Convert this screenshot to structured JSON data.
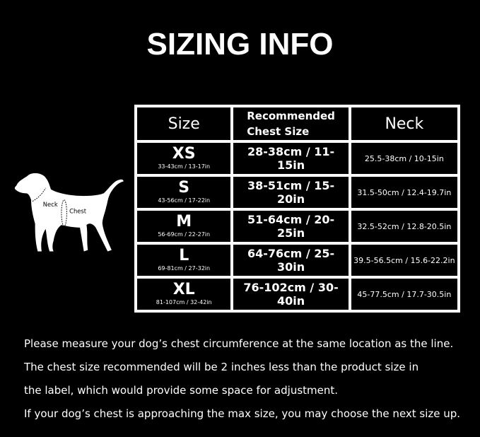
{
  "title": "SIZING INFO",
  "table": {
    "headers": {
      "size": "Size",
      "chest_line1": "Recommended",
      "chest_line2": "Chest Size",
      "neck": "Neck"
    },
    "rows": [
      {
        "size": "XS",
        "range": "33-43cm / 13-17in",
        "chest": "28-38cm / 11-15in",
        "neck": "25.5-38cm / 10-15in"
      },
      {
        "size": "S",
        "range": "43-56cm / 17-22in",
        "chest": "38-51cm / 15-20in",
        "neck": "31.5-50cm / 12.4-19.7in"
      },
      {
        "size": "M",
        "range": "56-69cm / 22-27in",
        "chest": "51-64cm / 20-25in",
        "neck": "32.5-52cm / 12.8-20.5in"
      },
      {
        "size": "L",
        "range": "69-81cm / 27-32in",
        "chest": "64-76cm / 25-30in",
        "neck": "39.5-56.5cm / 15.6-22.2in"
      },
      {
        "size": "XL",
        "range": "81-107cm / 32-42in",
        "chest": "76-102cm / 30-40in",
        "neck": "45-77.5cm / 17.7-30.5in"
      }
    ]
  },
  "dog": {
    "neck_label": "Neck",
    "chest_label": "Chest"
  },
  "notes": [
    "Please measure your dog’s chest circumference at the same location as the line.",
    "The chest size recommended will be 2 inches less than the product size in",
    "the label, which would provide some space for adjustment.",
    "If your dog’s chest is approaching the max size, you may choose the next size up."
  ]
}
